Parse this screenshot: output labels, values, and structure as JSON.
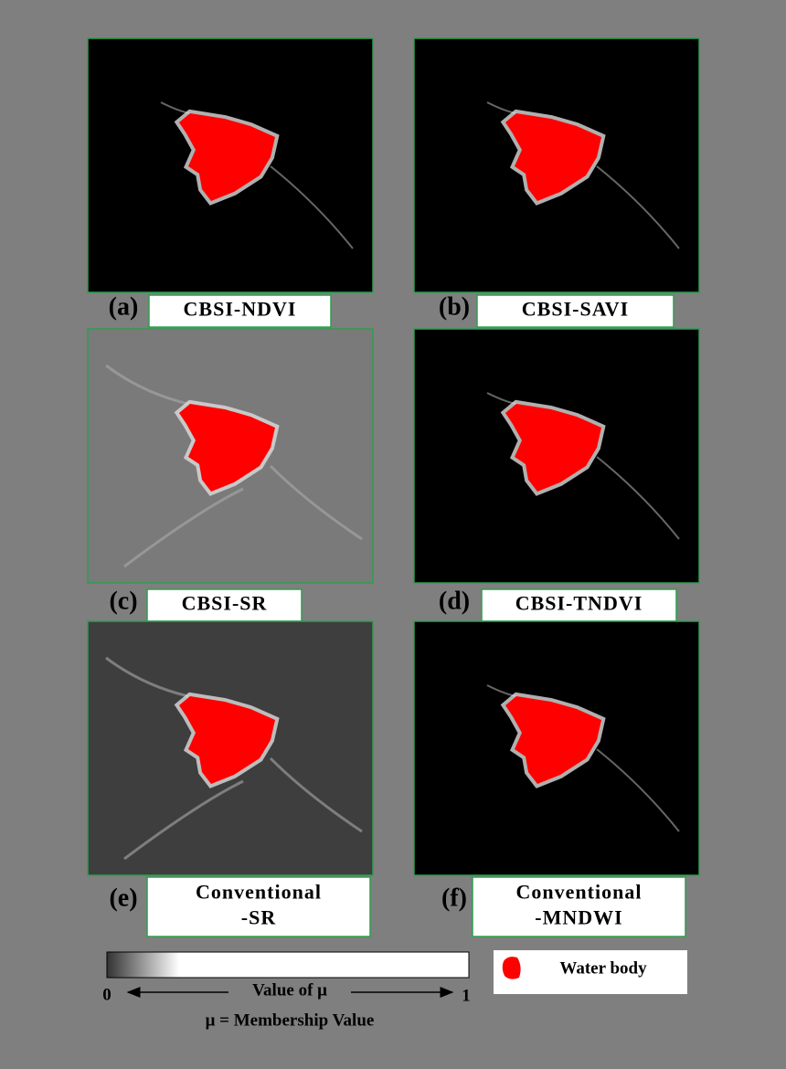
{
  "panels": [
    {
      "letter": "(a)",
      "label": [
        "CBSI-NDVI"
      ]
    },
    {
      "letter": "(b)",
      "label": [
        "CBSI-SAVI"
      ]
    },
    {
      "letter": "(c)",
      "label": [
        "CBSI-SR"
      ]
    },
    {
      "letter": "(d)",
      "label": [
        "CBSI-TNDVI"
      ]
    },
    {
      "letter": "(e)",
      "label": [
        "Conventional",
        "-SR"
      ]
    },
    {
      "letter": "(f)",
      "label": [
        "Conventional",
        "-MNDWI"
      ]
    }
  ],
  "legend": {
    "min": "0",
    "max": "1",
    "axis_label": "Value of  μ",
    "note": "μ = Membership Value",
    "water": "Water body"
  }
}
